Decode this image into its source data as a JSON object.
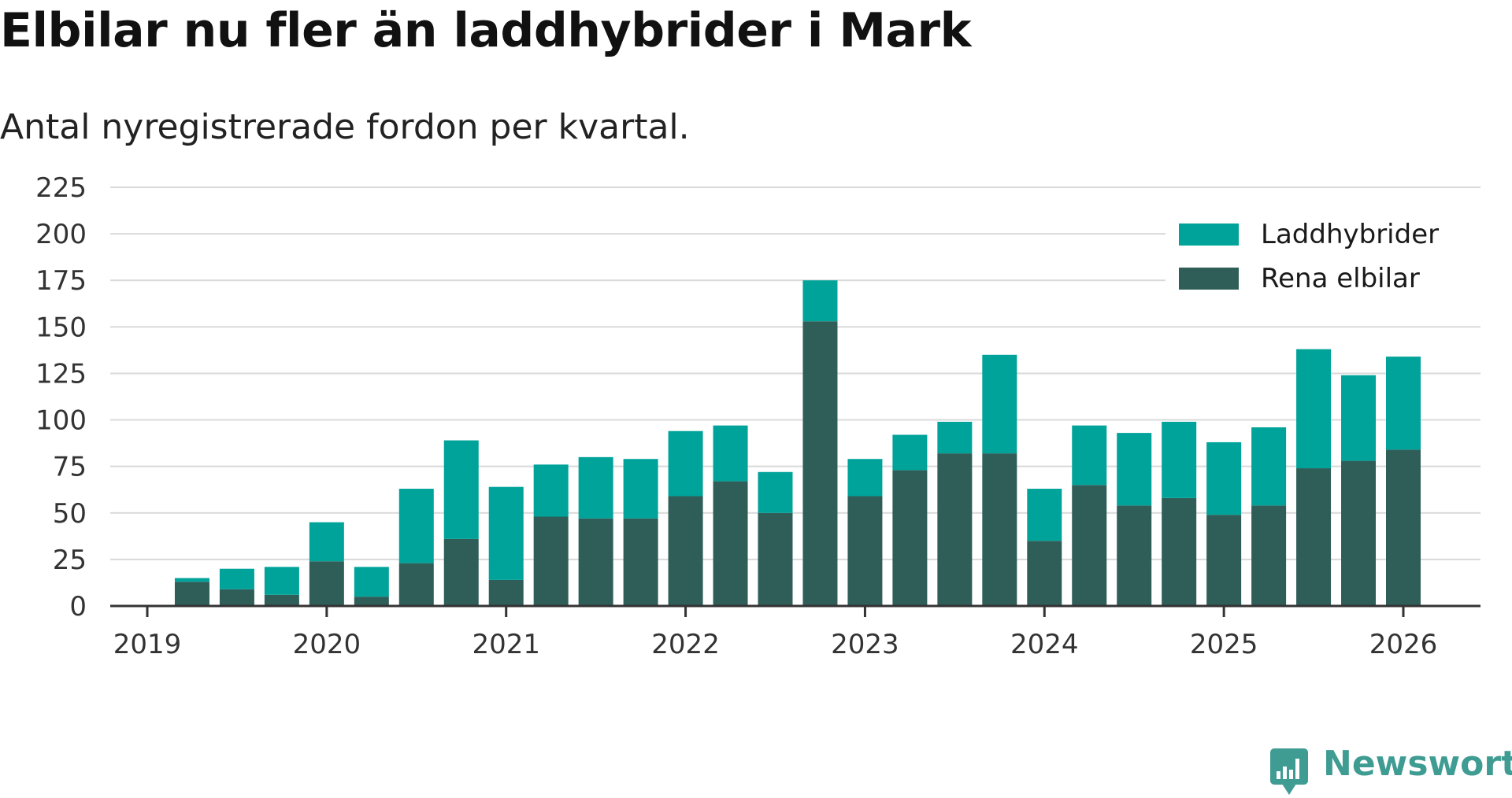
{
  "title": "Elbilar nu fler än laddhybrider i Mark",
  "subtitle": "Antal nyregistrerade fordon per kvartal.",
  "brand": {
    "name": "Newsworthy",
    "color": "#3f9c93",
    "icon": "newsworthy-logo-icon"
  },
  "colors": {
    "laddhybrider": "#00a39a",
    "rena_elbilar": "#2f5e58",
    "grid": "#d9d9d9",
    "axis": "#333333"
  },
  "chart_data": {
    "type": "bar",
    "stacked": true,
    "title": "Elbilar nu fler än laddhybrider i Mark",
    "subtitle": "Antal nyregistrerade fordon per kvartal.",
    "xlabel": "",
    "ylabel": "",
    "ylim": [
      0,
      225
    ],
    "yticks": [
      0,
      25,
      50,
      75,
      100,
      125,
      150,
      175,
      200,
      225
    ],
    "xticks": [
      "2019",
      "2020",
      "2021",
      "2022",
      "2023",
      "2024",
      "2025",
      "2026"
    ],
    "xlim": [
      2019.0,
      2026.5
    ],
    "grid": true,
    "legend_position": "top-right",
    "categories": [
      "2019 Q2",
      "2019 Q3",
      "2019 Q4",
      "2020 Q1",
      "2020 Q2",
      "2020 Q3",
      "2020 Q4",
      "2021 Q1",
      "2021 Q2",
      "2021 Q3",
      "2021 Q4",
      "2022 Q1",
      "2022 Q2",
      "2022 Q3",
      "2022 Q4",
      "2023 Q1",
      "2023 Q2",
      "2023 Q3",
      "2023 Q4",
      "2024 Q1",
      "2024 Q2",
      "2024 Q3",
      "2024 Q4",
      "2025 Q1",
      "2025 Q2",
      "2025 Q3",
      "2025 Q4",
      "2026 Q1"
    ],
    "x": [
      2019.25,
      2019.5,
      2019.75,
      2020.0,
      2020.25,
      2020.5,
      2020.75,
      2021.0,
      2021.25,
      2021.5,
      2021.75,
      2022.0,
      2022.25,
      2022.5,
      2022.75,
      2023.0,
      2023.25,
      2023.5,
      2023.75,
      2024.0,
      2024.25,
      2024.5,
      2024.75,
      2025.0,
      2025.25,
      2025.5,
      2025.75,
      2026.0
    ],
    "series": [
      {
        "name": "Rena elbilar",
        "values": [
          13,
          9,
          6,
          24,
          5,
          23,
          36,
          14,
          48,
          47,
          47,
          59,
          67,
          50,
          153,
          59,
          73,
          82,
          82,
          35,
          65,
          54,
          58,
          49,
          54,
          74,
          78,
          84
        ]
      },
      {
        "name": "Laddhybrider",
        "values": [
          2,
          11,
          15,
          21,
          16,
          40,
          53,
          50,
          28,
          33,
          32,
          35,
          30,
          22,
          22,
          20,
          19,
          17,
          53,
          28,
          32,
          39,
          41,
          39,
          42,
          64,
          46,
          50
        ]
      }
    ],
    "legend": [
      "Laddhybrider",
      "Rena elbilar"
    ]
  }
}
